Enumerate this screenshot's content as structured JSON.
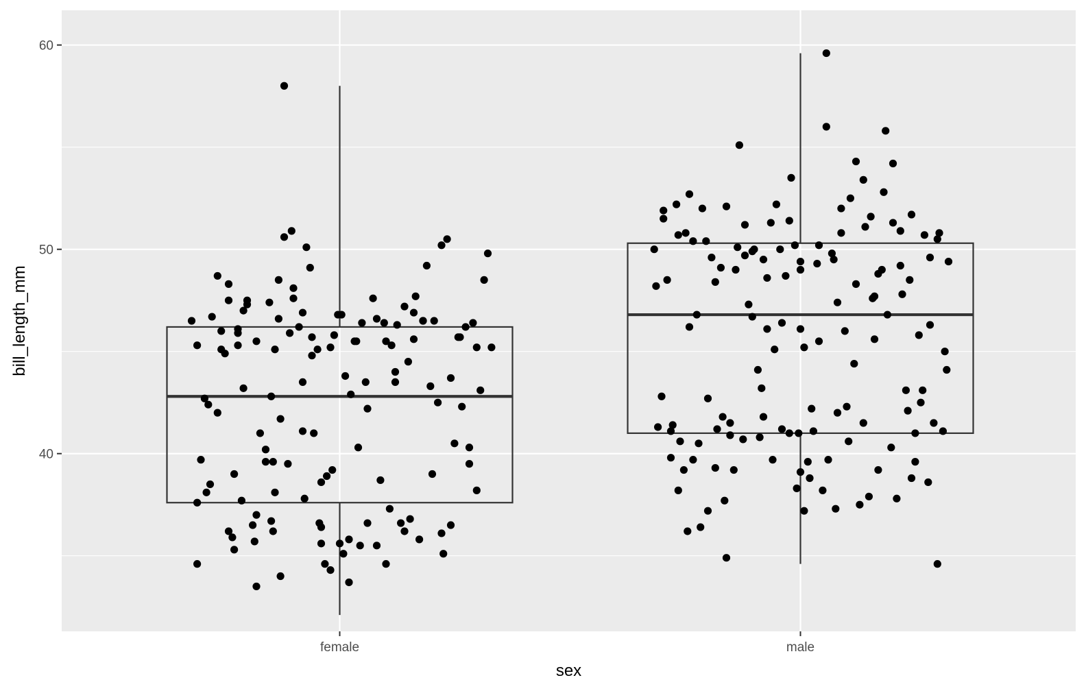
{
  "chart_data": {
    "type": "box",
    "title": "",
    "xlabel": "sex",
    "ylabel": "bill_length_mm",
    "categories": [
      "female",
      "male"
    ],
    "ylim": [
      31.3,
      61.7
    ],
    "y_ticks": [
      40,
      50,
      60
    ],
    "y_tick_labels": [
      "40",
      "50",
      "60"
    ],
    "grid": true,
    "colors": {
      "panel": "#ebebeb",
      "grid": "#ffffff",
      "box": "#333333",
      "points": "#000000"
    },
    "boxes": [
      {
        "category": "female",
        "min": 32.1,
        "q1": 37.6,
        "median": 42.8,
        "q3": 46.2,
        "max": 58.0
      },
      {
        "category": "male",
        "min": 34.6,
        "q1": 41.0,
        "median": 46.8,
        "q3": 50.3,
        "max": 59.6
      }
    ],
    "series": [
      {
        "category": "female",
        "jitter": [
          -0.8,
          -0.77,
          -0.75,
          -0.77,
          -0.77,
          -0.73,
          -0.71,
          -0.7,
          -0.72,
          -0.69,
          -0.66,
          -0.66,
          -0.64,
          -0.64,
          -0.62,
          -0.6,
          -0.6,
          -0.58,
          -0.57,
          -0.57,
          -0.55,
          -0.55,
          -0.53,
          -0.52,
          -0.52,
          -0.5,
          -0.47,
          -0.46,
          -0.45,
          -0.45,
          -0.43,
          -0.4,
          -0.38,
          -0.37,
          -0.37,
          -0.36,
          -0.36,
          -0.35,
          -0.33,
          -0.33,
          -0.32,
          -0.32,
          -0.3,
          -0.28,
          -0.27,
          -0.26,
          -0.25,
          -0.22,
          -0.2,
          -0.2,
          -0.19,
          -0.18,
          -0.16,
          -0.15,
          -0.14,
          -0.12,
          -0.11,
          -0.1,
          -0.1,
          -0.08,
          -0.07,
          -0.05,
          -0.04,
          -0.03,
          -0.01,
          0.0,
          0.01,
          0.02,
          0.03,
          0.05,
          0.06,
          0.08,
          0.09,
          0.11,
          0.12,
          0.14,
          0.15,
          0.18,
          0.2,
          0.22,
          0.24,
          0.25,
          0.27,
          0.28,
          0.3,
          0.31,
          0.33,
          0.35,
          0.37,
          0.38,
          0.4,
          0.41,
          0.43,
          0.45,
          0.47,
          0.49,
          0.51,
          0.53,
          0.55,
          0.56,
          0.58,
          0.6,
          0.62,
          0.64,
          0.66,
          0.68,
          0.7,
          0.72,
          0.74,
          0.76,
          0.78,
          0.8,
          0.82,
          0.74,
          0.7,
          0.65,
          0.6,
          0.55,
          0.5,
          0.45,
          0.4,
          0.35,
          0.3,
          0.25,
          0.2,
          0.15,
          0.1,
          0.05,
          -0.05,
          -0.1,
          -0.15,
          -0.2,
          -0.25,
          -0.3,
          -0.35,
          -0.4,
          -0.45,
          -0.5,
          -0.55,
          -0.6,
          -0.65,
          -0.7,
          -0.75
        ],
        "values": [
          46.5,
          45.3,
          39.7,
          37.6,
          34.6,
          42.7,
          42.4,
          38.5,
          38.1,
          46.7,
          42.0,
          48.7,
          46.0,
          45.1,
          44.9,
          48.3,
          47.5,
          35.9,
          39.0,
          35.3,
          45.3,
          46.1,
          37.7,
          43.2,
          47.0,
          47.3,
          36.5,
          35.7,
          45.5,
          33.5,
          41.0,
          40.2,
          47.4,
          36.7,
          42.8,
          39.6,
          36.2,
          45.1,
          46.6,
          48.5,
          34.0,
          41.7,
          58.0,
          39.5,
          45.9,
          50.9,
          47.6,
          46.2,
          43.5,
          46.9,
          37.8,
          50.1,
          49.1,
          44.8,
          41.0,
          45.1,
          36.6,
          35.6,
          38.6,
          34.6,
          38.9,
          34.3,
          39.2,
          45.8,
          46.8,
          35.6,
          46.8,
          35.1,
          43.8,
          33.7,
          42.9,
          45.5,
          45.5,
          35.5,
          46.4,
          43.5,
          36.6,
          47.6,
          46.6,
          38.7,
          46.4,
          34.6,
          37.3,
          45.3,
          44.0,
          46.3,
          36.6,
          47.2,
          44.5,
          36.8,
          45.6,
          47.7,
          35.8,
          46.5,
          49.2,
          43.3,
          46.5,
          42.5,
          50.2,
          35.1,
          50.5,
          36.5,
          40.5,
          45.7,
          42.3,
          46.2,
          39.5,
          46.4,
          45.2,
          43.1,
          48.5,
          49.8,
          45.2,
          38.2,
          40.3,
          45.7,
          43.7,
          36.1,
          39.0,
          46.5,
          46.9,
          36.2,
          43.5,
          45.5,
          35.5,
          42.2,
          40.3,
          35.8,
          45.2,
          36.4,
          45.7,
          41.1,
          48.1,
          50.6,
          38.1,
          39.6,
          37.0,
          47.5,
          45.9,
          36.2
        ],
        "shown": "individual points (jittered)"
      },
      {
        "category": "male",
        "jitter": [
          -0.79,
          -0.77,
          -0.75,
          -0.74,
          -0.72,
          -0.7,
          -0.69,
          -0.67,
          -0.66,
          -0.65,
          -0.63,
          -0.61,
          -0.6,
          -0.58,
          -0.56,
          -0.55,
          -0.53,
          -0.51,
          -0.5,
          -0.48,
          -0.46,
          -0.45,
          -0.43,
          -0.41,
          -0.4,
          -0.38,
          -0.36,
          -0.35,
          -0.33,
          -0.31,
          -0.3,
          -0.28,
          -0.26,
          -0.25,
          -0.23,
          -0.21,
          -0.2,
          -0.18,
          -0.16,
          -0.15,
          -0.13,
          -0.11,
          -0.1,
          -0.08,
          -0.06,
          -0.05,
          -0.03,
          -0.01,
          0.0,
          0.02,
          0.04,
          0.05,
          0.07,
          0.09,
          0.1,
          0.12,
          0.14,
          0.15,
          0.17,
          0.19,
          0.2,
          0.22,
          0.24,
          0.25,
          0.27,
          0.29,
          0.3,
          0.32,
          0.34,
          0.35,
          0.37,
          0.39,
          0.4,
          0.42,
          0.44,
          0.45,
          0.47,
          0.49,
          0.5,
          0.52,
          0.54,
          0.55,
          0.57,
          0.59,
          0.6,
          0.62,
          0.64,
          0.65,
          0.67,
          0.69,
          0.7,
          0.72,
          0.74,
          0.75,
          0.77,
          0.79,
          0.8,
          -0.78,
          -0.74,
          -0.7,
          -0.66,
          -0.62,
          -0.58,
          -0.54,
          -0.5,
          -0.46,
          -0.42,
          -0.38,
          -0.34,
          -0.3,
          -0.26,
          -0.22,
          -0.18,
          -0.14,
          -0.1,
          -0.06,
          -0.02,
          0.02,
          0.06,
          0.1,
          0.14,
          0.18,
          0.22,
          0.26,
          0.3,
          0.34,
          0.38,
          0.42,
          0.46,
          0.5,
          0.54,
          0.58,
          0.62,
          0.66,
          0.7,
          0.74,
          0.78,
          -0.6,
          -0.4,
          -0.2,
          0.0,
          0.2,
          0.4,
          0.6
        ],
        "values": [
          50.0,
          41.3,
          42.8,
          51.5,
          48.5,
          39.8,
          41.4,
          52.2,
          50.7,
          40.6,
          39.2,
          36.2,
          46.2,
          39.7,
          46.8,
          40.5,
          52.0,
          50.4,
          42.7,
          49.6,
          48.4,
          41.2,
          49.1,
          37.7,
          52.1,
          41.5,
          39.2,
          49.0,
          55.1,
          40.7,
          49.7,
          47.3,
          46.7,
          50.0,
          44.1,
          43.2,
          49.5,
          46.1,
          51.3,
          39.7,
          52.2,
          50.0,
          41.2,
          48.7,
          51.4,
          53.5,
          50.2,
          41.0,
          49.0,
          45.2,
          39.6,
          38.8,
          41.1,
          49.3,
          45.5,
          38.2,
          56.0,
          39.7,
          49.8,
          37.3,
          42.0,
          52.0,
          46.0,
          42.3,
          52.5,
          44.4,
          48.3,
          37.5,
          53.4,
          51.1,
          37.9,
          47.6,
          45.6,
          39.2,
          49.0,
          52.8,
          46.8,
          40.3,
          51.3,
          37.8,
          49.2,
          47.8,
          43.1,
          48.5,
          51.7,
          39.6,
          45.8,
          42.5,
          50.7,
          38.6,
          49.6,
          41.5,
          34.6,
          50.8,
          41.1,
          44.1,
          49.4,
          48.2,
          51.9,
          41.1,
          38.2,
          50.8,
          50.4,
          36.4,
          37.2,
          39.3,
          41.8,
          40.9,
          50.1,
          51.2,
          49.9,
          40.8,
          48.6,
          45.1,
          46.4,
          41.0,
          38.3,
          37.2,
          42.2,
          50.2,
          59.6,
          49.5,
          50.8,
          40.6,
          54.3,
          41.5,
          51.6,
          48.8,
          55.8,
          54.2,
          50.9,
          42.1,
          41.0,
          43.1,
          46.3,
          50.5,
          45.0,
          52.7,
          34.9,
          41.8,
          46.1,
          47.4,
          47.7,
          38.8,
          39.1,
          49.4
        ]
      }
    ]
  }
}
